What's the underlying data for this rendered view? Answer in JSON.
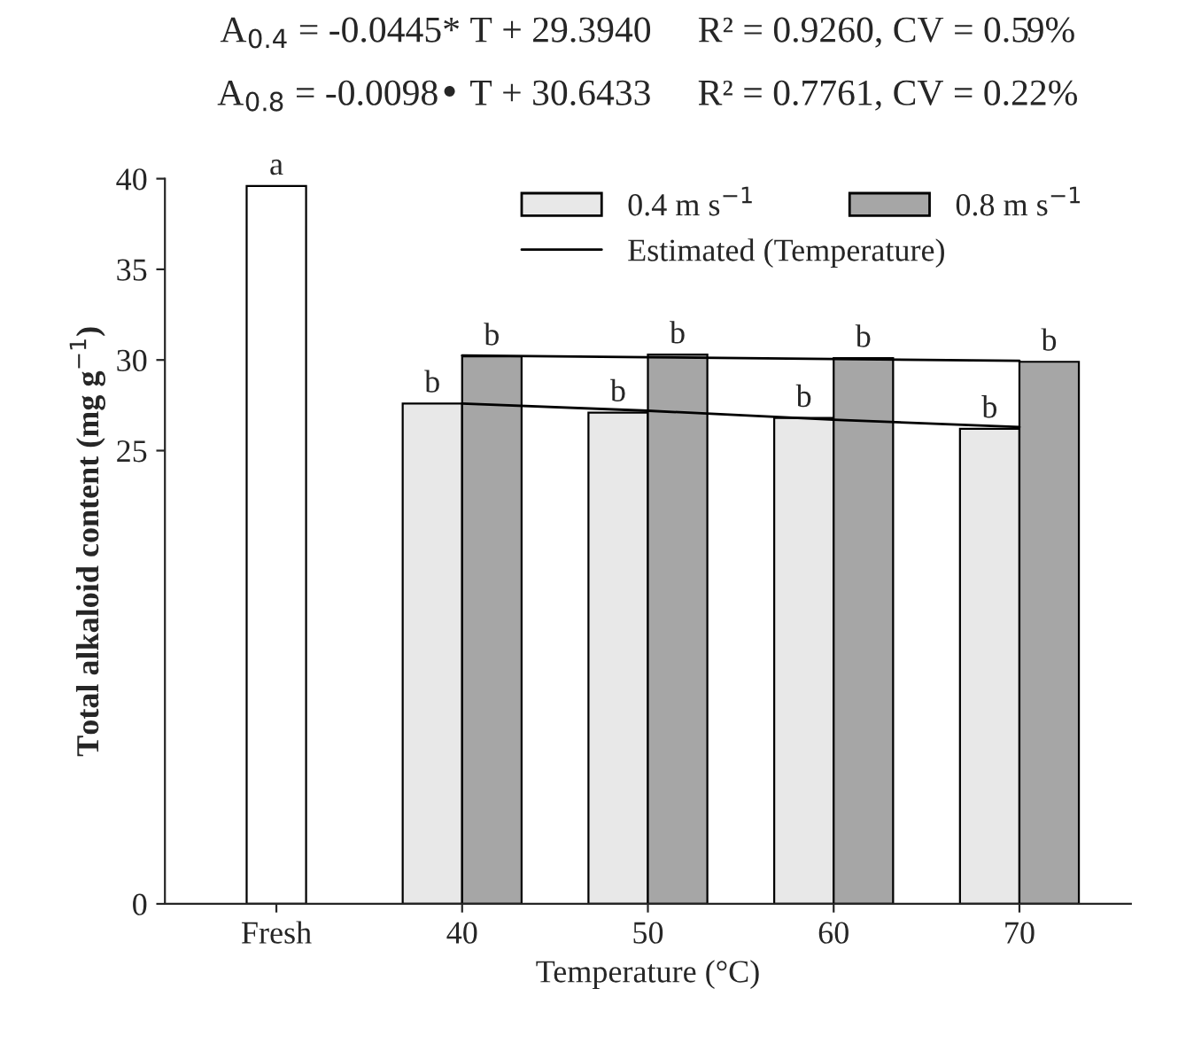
{
  "chart_data": {
    "type": "bar",
    "title": "A$_{0.4}$ = -0.0445* T + 29.3940     R² = 0.9260, CV = 0.59%",
    "subtitle": "A$_{0.8}$ = -0.0098• T + 30.6433     R² = 0.7761, CV = 0.22%",
    "xlabel": "Temperature (°C)",
    "ylabel": "Total alkaloid content (mg g$^{−1}$)",
    "categories": [
      "Fresh",
      "40",
      "50",
      "60",
      "70"
    ],
    "series": [
      {
        "color": "#ffffff",
        "values": [
          39.6,
          null,
          null,
          null,
          null
        ],
        "value_labels": [
          "a",
          null,
          null,
          null,
          null
        ]
      },
      {
        "name": "0.4 m s$^{−1}$",
        "color": "#e8e8e8",
        "values": [
          null,
          27.6,
          27.1,
          26.8,
          26.2
        ],
        "value_labels": [
          null,
          "b",
          "b",
          "b",
          "b"
        ]
      },
      {
        "name": "0.8 m s$^{−1}$",
        "color": "#a6a6a6",
        "values": [
          null,
          30.2,
          30.3,
          30.1,
          29.9
        ],
        "value_labels": [
          null,
          "b",
          "b",
          "b",
          "b"
        ]
      },
      {
        "type": "line",
        "name": "Estimated (Temperature)",
        "color": "#000000",
        "values": [
          null,
          27.6,
          27.2,
          26.7,
          26.3
        ]
      },
      {
        "type": "line",
        "color": "#000000",
        "values": [
          null,
          30.25,
          30.15,
          30.05,
          29.95
        ]
      }
    ],
    "ylim": [
      0,
      40
    ],
    "yticks": [
      0,
      25,
      30,
      35,
      40
    ],
    "legend": "top right",
    "grid": false,
    "marker": "none",
    "line_style": "solid"
  }
}
